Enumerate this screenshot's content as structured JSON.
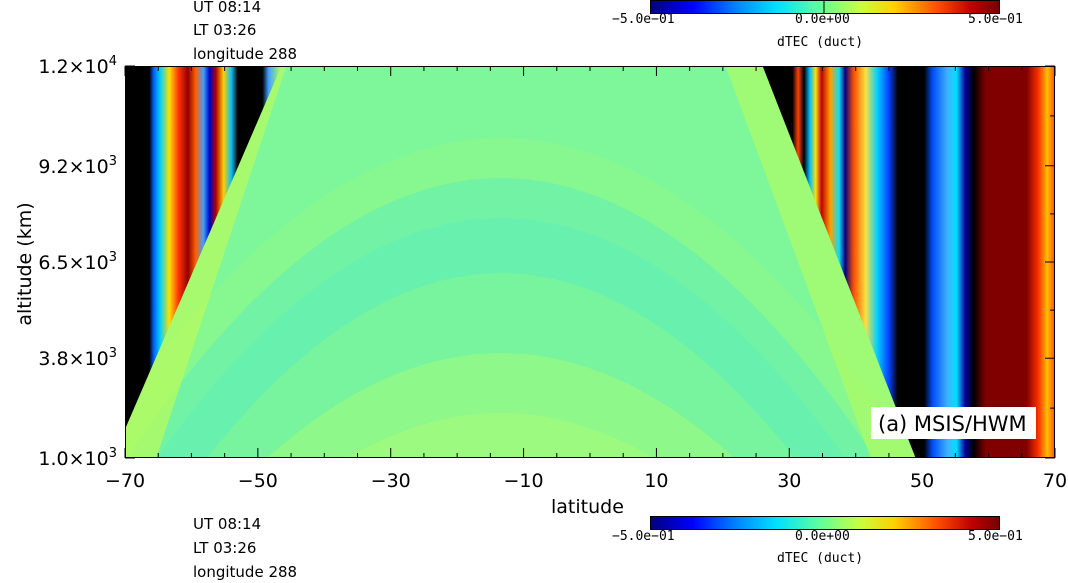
{
  "top_panel": {
    "info_lines": [
      "UT 08:14",
      "LT 03:26",
      "longitude 288"
    ],
    "colorbar": {
      "min_label": "−5.0e−01",
      "mid_label": "0.0e+00",
      "max_label": "5.0e−01",
      "label": "dTEC (duct)"
    }
  },
  "bottom_panel": {
    "info_lines": [
      "UT 08:14",
      "LT 03:26",
      "longitude 288"
    ],
    "colorbar": {
      "min_label": "−5.0e−01",
      "mid_label": "0.0e+00",
      "max_label": "5.0e−01",
      "label": "dTEC (duct)"
    }
  },
  "chart_data": {
    "type": "heatmap",
    "title": "",
    "xlabel": "latitude",
    "ylabel": "altitude (km)",
    "xlim": [
      -70,
      70
    ],
    "ylim": [
      1000,
      12000
    ],
    "x_ticks": [
      "−70",
      "−50",
      "−30",
      "−10",
      "10",
      "30",
      "50",
      "70"
    ],
    "y_ticks": [
      {
        "mant": "1.0×10",
        "exp": "3",
        "value": 1000
      },
      {
        "mant": "3.8×10",
        "exp": "3",
        "value": 3800
      },
      {
        "mant": "6.5×10",
        "exp": "3",
        "value": 6500
      },
      {
        "mant": "9.2×10",
        "exp": "3",
        "value": 9200
      },
      {
        "mant": "1.2×10",
        "exp": "4",
        "value": 12000
      }
    ],
    "color_range": [
      -0.5,
      0.5
    ],
    "colorbar_label": "dTEC (duct)",
    "annotation": "(a) MSIS/HWM"
  },
  "colors": {
    "background_fill": "#7ef79a",
    "center_fill": "#66f0b0"
  }
}
